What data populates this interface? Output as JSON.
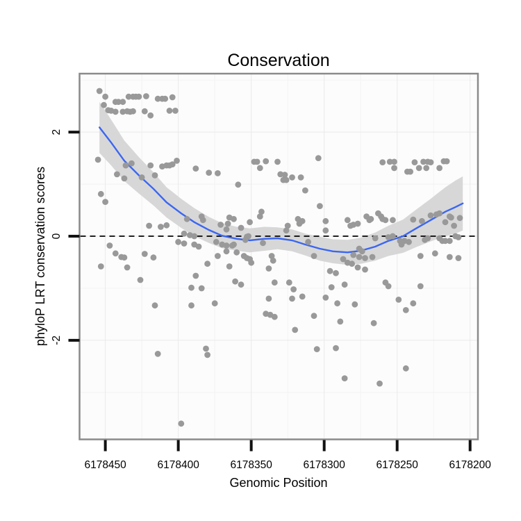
{
  "title": "Conservation",
  "colors": {
    "point": "#999999",
    "smooth_line": "#3A66F2",
    "ci_band": "#D7D7D7",
    "panel_bg": "#FCFCFC",
    "grid_major": "#EAEAEA",
    "grid_minor": "#F3F3F3",
    "panel_border": "#8A8A8A",
    "tick_mark": "#111111",
    "reference_line": "#000000",
    "text": "#000000"
  },
  "chart_data": {
    "type": "scatter",
    "title": "Conservation",
    "xlabel": "Genomic Position",
    "ylabel": "phyloP LRT conservation scores",
    "x_axis_reversed": true,
    "xlim": [
      6178467.2,
      6178195.1
    ],
    "ylim": [
      -3.89,
      3.11
    ],
    "x_tick_values": [
      6178450,
      6178400,
      6178350,
      6178300,
      6178250,
      6178200
    ],
    "x_tick_labels": [
      "6178450",
      "6178400",
      "6178350",
      "6178300",
      "6178250",
      "6178200"
    ],
    "x_minor_gridlines": [
      6178425,
      6178375,
      6178325,
      6178275,
      6178225
    ],
    "y_tick_values": [
      2,
      0,
      -2
    ],
    "y_tick_labels": [
      "2",
      "0",
      "-2"
    ],
    "y_minor_gridlines": [
      3,
      1,
      -1,
      -3
    ],
    "grid": "on",
    "legend": "none",
    "reference_line": {
      "y": 0,
      "style": "dashed"
    },
    "points": [
      [
        6178454,
        2.79
      ],
      [
        6178450,
        2.68
      ],
      [
        6178451,
        2.52
      ],
      [
        6178443,
        2.58
      ],
      [
        6178441,
        2.58
      ],
      [
        6178438,
        2.58
      ],
      [
        6178434,
        2.68
      ],
      [
        6178431,
        2.68
      ],
      [
        6178429,
        2.68
      ],
      [
        6178427,
        2.68
      ],
      [
        6178422,
        2.69
      ],
      [
        6178414,
        2.64
      ],
      [
        6178411,
        2.64
      ],
      [
        6178409,
        2.64
      ],
      [
        6178404,
        2.67
      ],
      [
        6178448,
        2.42
      ],
      [
        6178446,
        2.41
      ],
      [
        6178443,
        2.39
      ],
      [
        6178438,
        2.39
      ],
      [
        6178435,
        2.4
      ],
      [
        6178433,
        2.39
      ],
      [
        6178431,
        2.4
      ],
      [
        6178423,
        2.4
      ],
      [
        6178419,
        2.32
      ],
      [
        6178406,
        2.41
      ],
      [
        6178402,
        2.41
      ],
      [
        6178455,
        1.47
      ],
      [
        6178436,
        1.36
      ],
      [
        6178432,
        1.4
      ],
      [
        6178419,
        1.36
      ],
      [
        6178411,
        1.34
      ],
      [
        6178408,
        1.36
      ],
      [
        6178406,
        1.36
      ],
      [
        6178404,
        1.38
      ],
      [
        6178401,
        1.45
      ],
      [
        6178388,
        1.3
      ],
      [
        6178379,
        1.22
      ],
      [
        6178442,
        1.19
      ],
      [
        6178437,
        1.11
      ],
      [
        6178425,
        1.13
      ],
      [
        6178416,
        1.17
      ],
      [
        6178453,
        0.81
      ],
      [
        6178450,
        0.66
      ],
      [
        6178373,
        1.21
      ],
      [
        6178359,
        0.99
      ],
      [
        6178348,
        1.43
      ],
      [
        6178346,
        1.43
      ],
      [
        6178340,
        1.44
      ],
      [
        6178344,
        1.31
      ],
      [
        6178332,
        1.43
      ],
      [
        6178330,
        1.19
      ],
      [
        6178327,
        1.18
      ],
      [
        6178328,
        1.08
      ],
      [
        6178326,
        1.08
      ],
      [
        6178322,
        1.13
      ],
      [
        6178316,
        1.13
      ],
      [
        6178304,
        1.5
      ],
      [
        6178313,
        0.88
      ],
      [
        6178303,
        0.58
      ],
      [
        6178260,
        1.42
      ],
      [
        6178255,
        1.43
      ],
      [
        6178252,
        1.43
      ],
      [
        6178252,
        1.31
      ],
      [
        6178243,
        1.24
      ],
      [
        6178241,
        1.24
      ],
      [
        6178238,
        1.42
      ],
      [
        6178235,
        1.31
      ],
      [
        6178232,
        1.43
      ],
      [
        6178229,
        1.43
      ],
      [
        6178230,
        1.31
      ],
      [
        6178227,
        1.42
      ],
      [
        6178221,
        1.31
      ],
      [
        6178218,
        1.44
      ],
      [
        6178216,
        1.44
      ],
      [
        6178420,
        0.2
      ],
      [
        6178412,
        0.18
      ],
      [
        6178408,
        0.21
      ],
      [
        6178396,
        0.05
      ],
      [
        6178392,
        0.02
      ],
      [
        6178389,
        0.0
      ],
      [
        6178400,
        -0.11
      ],
      [
        6178396,
        -0.14
      ],
      [
        6178389,
        -0.16
      ],
      [
        6178386,
        -0.2
      ],
      [
        6178384,
        0.38
      ],
      [
        6178383,
        0.31
      ],
      [
        6178394,
        0.33
      ],
      [
        6178447,
        -0.18
      ],
      [
        6178443,
        -0.33
      ],
      [
        6178439,
        -0.4
      ],
      [
        6178437,
        -0.41
      ],
      [
        6178453,
        -0.58
      ],
      [
        6178435,
        -0.6
      ],
      [
        6178423,
        -0.34
      ],
      [
        6178417,
        -0.41
      ],
      [
        6178426,
        -0.84
      ],
      [
        6178380,
        -0.53
      ],
      [
        6178388,
        -0.76
      ],
      [
        6178384,
        -1.0
      ],
      [
        6178416,
        -1.33
      ],
      [
        6178391,
        -1.33
      ],
      [
        6178391,
        -0.99
      ],
      [
        6178365,
        0.36
      ],
      [
        6178362,
        0.33
      ],
      [
        6178344,
        0.38
      ],
      [
        6178343,
        0.47
      ],
      [
        6178371,
        0.22
      ],
      [
        6178367,
        0.13
      ],
      [
        6178366,
        0.24
      ],
      [
        6178357,
        0.16
      ],
      [
        6178351,
        0.27
      ],
      [
        6178325,
        0.2
      ],
      [
        6178326,
        0.11
      ],
      [
        6178318,
        0.33
      ],
      [
        6178315,
        0.29
      ],
      [
        6178317,
        0.24
      ],
      [
        6178299,
        0.29
      ],
      [
        6178374,
        -0.11
      ],
      [
        6178370,
        -0.16
      ],
      [
        6178367,
        -0.18
      ],
      [
        6178363,
        -0.18
      ],
      [
        6178367,
        -0.29
      ],
      [
        6178373,
        -0.38
      ],
      [
        6178362,
        -0.16
      ],
      [
        6178360,
        -0.31
      ],
      [
        6178354,
        -0.07
      ],
      [
        6178352,
        0.0
      ],
      [
        6178353,
        -0.01
      ],
      [
        6178355,
        -0.38
      ],
      [
        6178353,
        -0.42
      ],
      [
        6178351,
        -0.44
      ],
      [
        6178350,
        -0.51
      ],
      [
        6178365,
        -0.58
      ],
      [
        6178342,
        -0.13
      ],
      [
        6178336,
        -0.38
      ],
      [
        6178335,
        -0.47
      ],
      [
        6178338,
        -0.62
      ],
      [
        6178334,
        -0.89
      ],
      [
        6178361,
        -0.87
      ],
      [
        6178357,
        -0.93
      ],
      [
        6178324,
        -0.89
      ],
      [
        6178321,
        -1.02
      ],
      [
        6178322,
        -1.2
      ],
      [
        6178315,
        -1.16
      ],
      [
        6178338,
        -1.2
      ],
      [
        6178375,
        -1.29
      ],
      [
        6178340,
        -1.49
      ],
      [
        6178337,
        -1.51
      ],
      [
        6178334,
        -1.55
      ],
      [
        6178307,
        -1.53
      ],
      [
        6178320,
        -1.8
      ],
      [
        6178311,
        -0.11
      ],
      [
        6178307,
        -0.38
      ],
      [
        6178296,
        -0.67
      ],
      [
        6178292,
        -0.71
      ],
      [
        6178299,
        -1.18
      ],
      [
        6178295,
        -0.98
      ],
      [
        6178291,
        -1.29
      ],
      [
        6178289,
        -1.64
      ],
      [
        6178287,
        -0.44
      ],
      [
        6178299,
        0.11
      ],
      [
        6178284,
        0.31
      ],
      [
        6178282,
        0.2
      ],
      [
        6178280,
        0.22
      ],
      [
        6178277,
        0.24
      ],
      [
        6178271,
        0.38
      ],
      [
        6178268,
        0.33
      ],
      [
        6178269,
        0.31
      ],
      [
        6178263,
        0.44
      ],
      [
        6178261,
        0.38
      ],
      [
        6178260,
        0.33
      ],
      [
        6178258,
        0.31
      ],
      [
        6178253,
        0.31
      ],
      [
        6178239,
        0.32
      ],
      [
        6178233,
        0.29
      ],
      [
        6178227,
        0.4
      ],
      [
        6178223,
        0.42
      ],
      [
        6178221,
        0.44
      ],
      [
        6178217,
        0.27
      ],
      [
        6178214,
        0.38
      ],
      [
        6178213,
        0.36
      ],
      [
        6178211,
        0.2
      ],
      [
        6178265,
        -0.04
      ],
      [
        6178256,
        -0.02
      ],
      [
        6178253,
        0.0
      ],
      [
        6178248,
        -0.09
      ],
      [
        6178247,
        -0.16
      ],
      [
        6178245,
        -0.09
      ],
      [
        6178242,
        -0.11
      ],
      [
        6178231,
        -0.07
      ],
      [
        6178229,
        -0.04
      ],
      [
        6178221,
        -0.04
      ],
      [
        6178219,
        -0.09
      ],
      [
        6178217,
        -0.09
      ],
      [
        6178214,
        -0.09
      ],
      [
        6178210,
        0.0
      ],
      [
        6178208,
        -0.02
      ],
      [
        6178276,
        -0.24
      ],
      [
        6178274,
        -0.29
      ],
      [
        6178280,
        -0.36
      ],
      [
        6178276,
        -0.4
      ],
      [
        6178272,
        -0.42
      ],
      [
        6178284,
        -0.51
      ],
      [
        6178281,
        -0.53
      ],
      [
        6178277,
        -0.6
      ],
      [
        6178272,
        -0.64
      ],
      [
        6178267,
        -0.4
      ],
      [
        6178234,
        -0.38
      ],
      [
        6178224,
        -0.33
      ],
      [
        6178214,
        -0.4
      ],
      [
        6178208,
        -0.42
      ],
      [
        6178286,
        -0.93
      ],
      [
        6178258,
        -0.89
      ],
      [
        6178256,
        -0.96
      ],
      [
        6178234,
        -0.96
      ],
      [
        6178249,
        -1.22
      ],
      [
        6178239,
        -1.29
      ],
      [
        6178244,
        -1.42
      ],
      [
        6178279,
        -1.31
      ],
      [
        6178266,
        -1.67
      ],
      [
        6178207,
        0.35
      ],
      [
        6178414,
        -2.26
      ],
      [
        6178381,
        -2.16
      ],
      [
        6178380,
        -2.28
      ],
      [
        6178398,
        -3.6
      ],
      [
        6178305,
        -2.17
      ],
      [
        6178292,
        -2.15
      ],
      [
        6178286,
        -2.73
      ],
      [
        6178262,
        -2.83
      ],
      [
        6178244,
        -2.54
      ]
    ],
    "smooth": {
      "method": "loess",
      "x": [
        6178454,
        6178446,
        6178437,
        6178427,
        6178417,
        6178408,
        6178398,
        6178389,
        6178379,
        6178370,
        6178360,
        6178351,
        6178341,
        6178332,
        6178322,
        6178313,
        6178303,
        6178294,
        6178284,
        6178275,
        6178265,
        6178256,
        6178246,
        6178237,
        6178227,
        6178217,
        6178210,
        6178205
      ],
      "y": [
        2.09,
        1.8,
        1.45,
        1.17,
        0.91,
        0.65,
        0.44,
        0.27,
        0.12,
        0.01,
        -0.05,
        -0.08,
        -0.05,
        -0.04,
        -0.08,
        -0.16,
        -0.24,
        -0.29,
        -0.31,
        -0.28,
        -0.2,
        -0.09,
        0.0,
        0.15,
        0.31,
        0.47,
        0.56,
        0.63
      ],
      "ci_halfwidth": [
        0.49,
        0.44,
        0.39,
        0.35,
        0.32,
        0.29,
        0.28,
        0.27,
        0.25,
        0.24,
        0.23,
        0.23,
        0.23,
        0.21,
        0.21,
        0.21,
        0.23,
        0.23,
        0.24,
        0.25,
        0.27,
        0.29,
        0.32,
        0.36,
        0.41,
        0.47,
        0.51,
        0.52
      ]
    }
  }
}
